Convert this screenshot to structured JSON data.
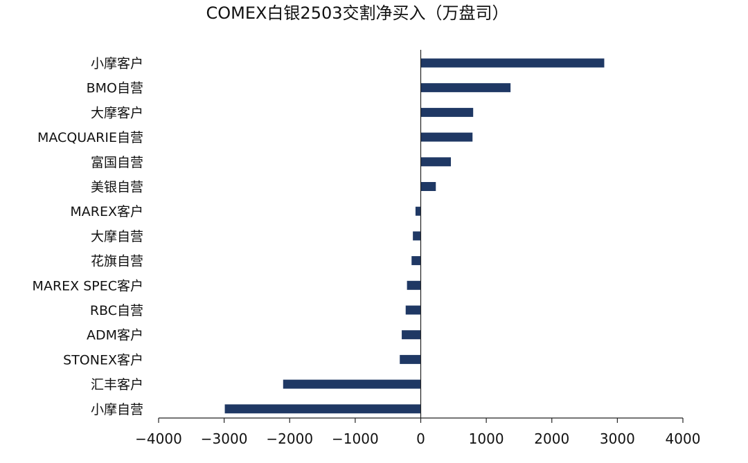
{
  "chart_data": {
    "type": "bar",
    "orientation": "horizontal",
    "title": "COMEX白银2503交割净买入（万盘司）",
    "xlabel": "",
    "ylabel": "",
    "categories": [
      "小摩客户",
      "BMO自营",
      "大摩客户",
      "MACQUARIE自营",
      "富国自营",
      "美银自营",
      "MAREX客户",
      "大摩自营",
      "花旗自营",
      "MAREX SPEC客户",
      "RBC自营",
      "ADM客户",
      "STONEX客户",
      "汇丰客户",
      "小摩自营"
    ],
    "values": [
      2800,
      1370,
      800,
      790,
      460,
      230,
      -80,
      -120,
      -140,
      -210,
      -230,
      -290,
      -320,
      -2100,
      -2990
    ],
    "xlim": [
      -4000,
      4000
    ],
    "xticks": [
      -4000,
      -3000,
      -2000,
      -1000,
      0,
      1000,
      2000,
      3000,
      4000
    ],
    "xtick_labels": [
      "−4000",
      "−3000",
      "−2000",
      "−1000",
      "0",
      "1000",
      "2000",
      "3000",
      "4000"
    ],
    "grid": false,
    "legend": "none",
    "bar_color": "#1f3864",
    "axis_color": "#222222"
  }
}
